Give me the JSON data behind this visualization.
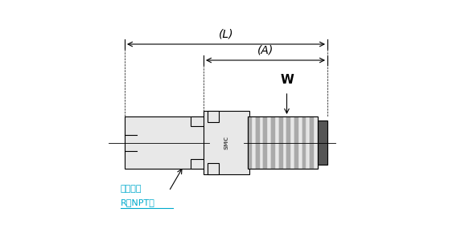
{
  "bg_color": "#ffffff",
  "line_color": "#000000",
  "gray_fill": "#d8d8d8",
  "light_gray": "#e8e8e8",
  "dark_gray": "#555555",
  "mid_gray": "#aaaaaa",
  "label_L": "(L)",
  "label_A": "(A)",
  "label_W": "W",
  "label_conn": "接続口径",
  "label_rnpt": "R（NPT）",
  "arrow_color": "#000000",
  "cyan_color": "#00aacc",
  "dim_line_color": "#333333"
}
